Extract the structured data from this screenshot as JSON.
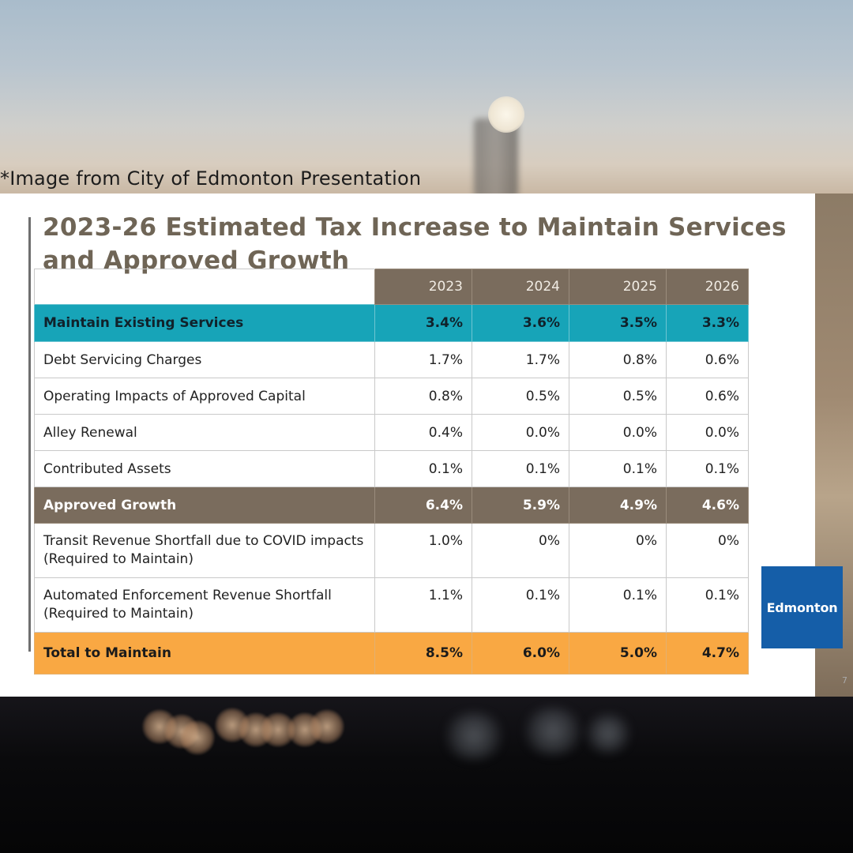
{
  "caption": "*Image from City of Edmonton Presentation",
  "slide": {
    "title": "2023-26 Estimated Tax Increase to Maintain Services and Approved Growth",
    "page_number": "7"
  },
  "table": {
    "columns": [
      "2023",
      "2024",
      "2025",
      "2026"
    ],
    "rows": [
      {
        "style": "teal",
        "label": "Maintain Existing Services",
        "values": [
          "3.4%",
          "3.6%",
          "3.5%",
          "3.3%"
        ]
      },
      {
        "style": "plain",
        "label": "Debt Servicing Charges",
        "values": [
          "1.7%",
          "1.7%",
          "0.8%",
          "0.6%"
        ]
      },
      {
        "style": "plain",
        "label": "Operating Impacts of Approved Capital",
        "values": [
          "0.8%",
          "0.5%",
          "0.5%",
          "0.6%"
        ]
      },
      {
        "style": "plain",
        "label": "Alley Renewal",
        "values": [
          "0.4%",
          "0.0%",
          "0.0%",
          "0.0%"
        ]
      },
      {
        "style": "plain",
        "label": "Contributed Assets",
        "values": [
          "0.1%",
          "0.1%",
          "0.1%",
          "0.1%"
        ]
      },
      {
        "style": "brown",
        "label": "Approved Growth",
        "values": [
          "6.4%",
          "5.9%",
          "4.9%",
          "4.6%"
        ]
      },
      {
        "style": "tall",
        "label": "Transit Revenue Shortfall due to COVID impacts (Required to Maintain)",
        "values": [
          "1.0%",
          "0%",
          "0%",
          "0%"
        ]
      },
      {
        "style": "tall",
        "label": "Automated Enforcement Revenue Shortfall (Required to Maintain)",
        "values": [
          "1.1%",
          "0.1%",
          "0.1%",
          "0.1%"
        ]
      },
      {
        "style": "orange",
        "label": "Total to Maintain",
        "values": [
          "8.5%",
          "6.0%",
          "5.0%",
          "4.7%"
        ]
      }
    ]
  },
  "logo": {
    "text": "Edmonton"
  },
  "colors": {
    "teal": "#17a4b8",
    "brown": "#7a6c5d",
    "orange": "#f9a843",
    "logo_blue": "#155ea8",
    "title": "#6f6556"
  }
}
